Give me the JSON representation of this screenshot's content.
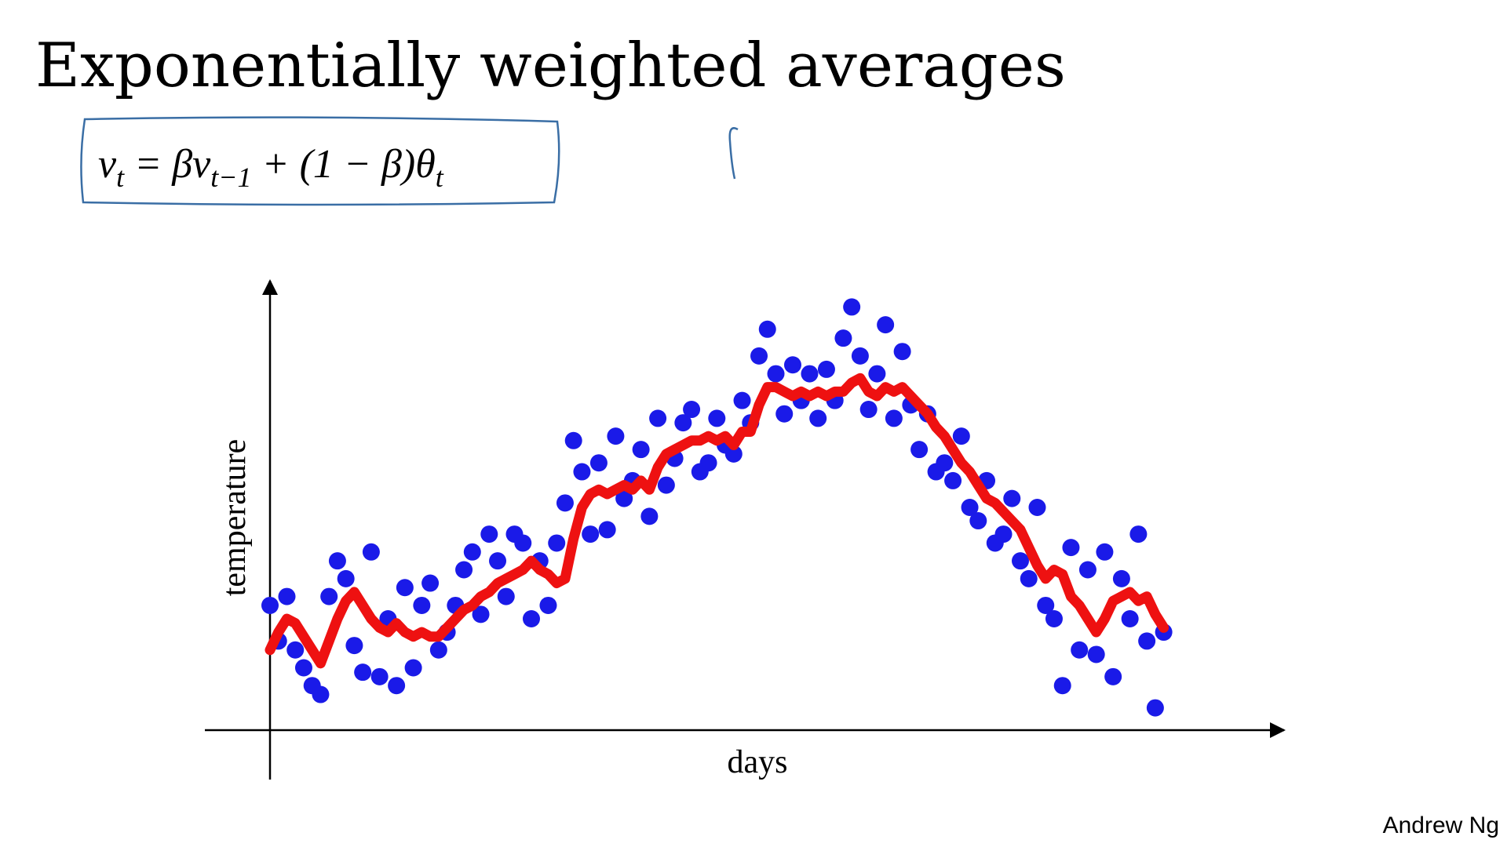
{
  "chart_data": {
    "type": "scatter",
    "title": "Exponentially weighted averages",
    "formula": [
      "v",
      "t",
      " = βv",
      "t−1",
      " + (1 − β)θ",
      "t"
    ],
    "x_label": "days",
    "y_label": "temperature",
    "credit": "Andrew Ng",
    "xlim": [
      0,
      120
    ],
    "ylim": [
      0,
      100
    ],
    "x": [
      0,
      1,
      2,
      3,
      4,
      5,
      6,
      7,
      8,
      9,
      10,
      11,
      12,
      13,
      14,
      15,
      16,
      17,
      18,
      19,
      20,
      21,
      22,
      23,
      24,
      25,
      26,
      27,
      28,
      29,
      30,
      31,
      32,
      33,
      34,
      35,
      36,
      37,
      38,
      39,
      40,
      41,
      42,
      43,
      44,
      45,
      46,
      47,
      48,
      49,
      50,
      51,
      52,
      53,
      54,
      55,
      56,
      57,
      58,
      59,
      60,
      61,
      62,
      63,
      64,
      65,
      66,
      67,
      68,
      69,
      70,
      71,
      72,
      73,
      74,
      75,
      76,
      77,
      78,
      79,
      80,
      81,
      82,
      83,
      84,
      85,
      86,
      87,
      88,
      89,
      90,
      91,
      92,
      93,
      94,
      95,
      96,
      97,
      98,
      99,
      100,
      101,
      102,
      103,
      104,
      105,
      106
    ],
    "series": [
      {
        "name": "temperature",
        "kind": "points",
        "color": "#1a1ae8",
        "values": [
          28,
          20,
          30,
          18,
          14,
          10,
          8,
          30,
          38,
          34,
          19,
          13,
          40,
          12,
          25,
          10,
          32,
          14,
          28,
          33,
          18,
          22,
          28,
          36,
          40,
          26,
          44,
          38,
          30,
          44,
          42,
          25,
          38,
          28,
          42,
          51,
          65,
          58,
          44,
          60,
          45,
          66,
          52,
          56,
          63,
          48,
          70,
          55,
          61,
          69,
          72,
          58,
          60,
          70,
          64,
          62,
          74,
          69,
          84,
          90,
          80,
          71,
          82,
          74,
          80,
          70,
          81,
          74,
          88,
          95,
          84,
          72,
          80,
          91,
          70,
          85,
          73,
          63,
          71,
          58,
          60,
          56,
          66,
          50,
          47,
          56,
          42,
          44,
          52,
          38,
          34,
          50,
          28,
          25,
          10,
          41,
          18,
          36,
          17,
          40,
          12,
          34,
          25,
          44,
          20,
          5,
          22
        ]
      },
      {
        "name": "exponentially weighted average",
        "kind": "line",
        "color": "#ee1111",
        "values": [
          18,
          22,
          25,
          24,
          21,
          18,
          15,
          20,
          25,
          29,
          31,
          28,
          25,
          23,
          22,
          24,
          22,
          21,
          22,
          21,
          21,
          23,
          25,
          27,
          28,
          30,
          31,
          33,
          34,
          35,
          36,
          38,
          36,
          35,
          33,
          34,
          43,
          50,
          53,
          54,
          53,
          54,
          55,
          54,
          56,
          54,
          59,
          62,
          63,
          64,
          65,
          65,
          66,
          65,
          66,
          64,
          67,
          67,
          73,
          77,
          77,
          76,
          75,
          76,
          75,
          76,
          75,
          76,
          76,
          78,
          79,
          76,
          75,
          77,
          76,
          77,
          75,
          73,
          71,
          68,
          66,
          63,
          60,
          58,
          55,
          52,
          51,
          49,
          47,
          45,
          41,
          37,
          34,
          36,
          35,
          30,
          28,
          25,
          22,
          25,
          29,
          30,
          31,
          29,
          30,
          26,
          23
        ]
      }
    ]
  }
}
